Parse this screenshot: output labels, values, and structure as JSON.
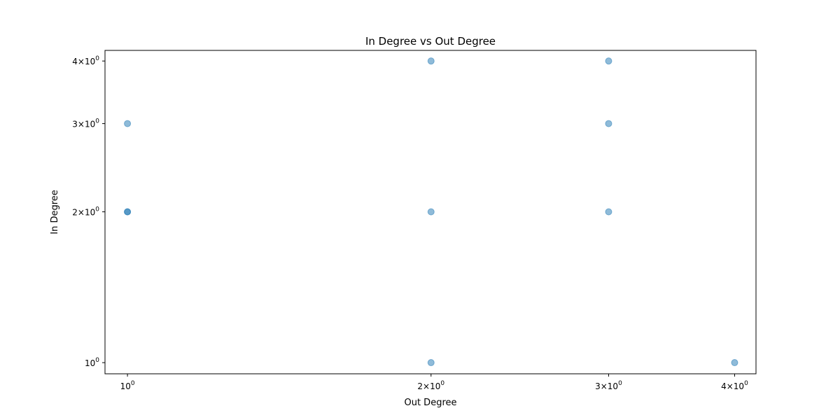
{
  "chart_data": {
    "type": "scatter",
    "title": "In Degree vs Out Degree",
    "xlabel": "Out Degree",
    "ylabel": "In Degree",
    "xscale": "log",
    "yscale": "log",
    "xlim": [
      0.95,
      4.2
    ],
    "ylim": [
      0.95,
      4.2
    ],
    "grid": false,
    "color": "#1f77b4",
    "alpha": 0.5,
    "x_ticks": [
      {
        "value": 1,
        "label": "10",
        "exp": "0"
      },
      {
        "value": 2,
        "label": "2×10",
        "exp": "0"
      },
      {
        "value": 3,
        "label": "3×10",
        "exp": "0"
      },
      {
        "value": 4,
        "label": "4×10",
        "exp": "0"
      }
    ],
    "y_ticks": [
      {
        "value": 1,
        "label": "10",
        "exp": "0"
      },
      {
        "value": 2,
        "label": "2×10",
        "exp": "0"
      },
      {
        "value": 3,
        "label": "3×10",
        "exp": "0"
      },
      {
        "value": 4,
        "label": "4×10",
        "exp": "0"
      }
    ],
    "points": [
      {
        "x": 1,
        "y": 3
      },
      {
        "x": 1,
        "y": 2
      },
      {
        "x": 1,
        "y": 2
      },
      {
        "x": 2,
        "y": 4
      },
      {
        "x": 2,
        "y": 2
      },
      {
        "x": 2,
        "y": 1
      },
      {
        "x": 3,
        "y": 4
      },
      {
        "x": 3,
        "y": 3
      },
      {
        "x": 3,
        "y": 2
      },
      {
        "x": 4,
        "y": 1
      }
    ]
  }
}
